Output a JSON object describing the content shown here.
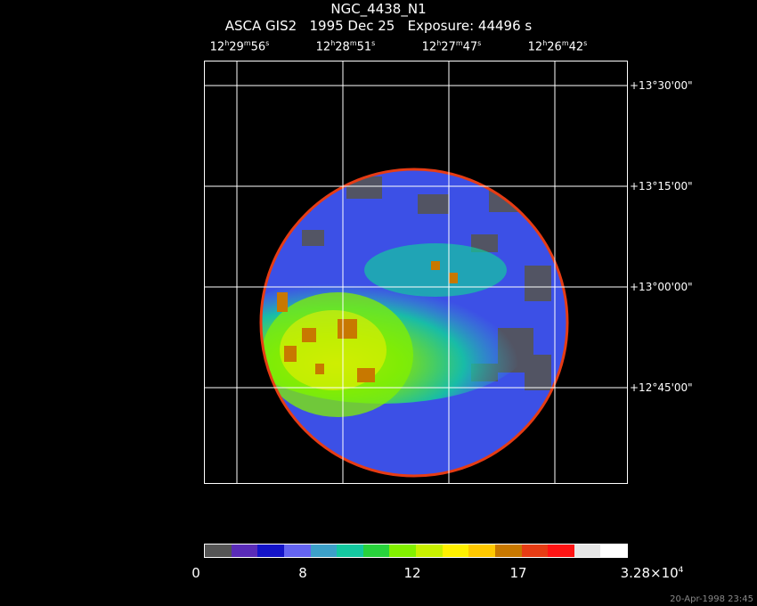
{
  "title": {
    "object": "NGC_4438_N1",
    "instrument": "ASCA GIS2",
    "date": "1995 Dec 25",
    "exposure_label": "Exposure:",
    "exposure_value": "44496 s"
  },
  "ra_ticks": [
    {
      "h": "12",
      "m": "29",
      "s": "56"
    },
    {
      "h": "12",
      "m": "28",
      "s": "51"
    },
    {
      "h": "12",
      "m": "27",
      "s": "47"
    },
    {
      "h": "12",
      "m": "26",
      "s": "42"
    }
  ],
  "dec_ticks": [
    "+13°30'00\"",
    "+13°15'00\"",
    "+13°00'00\"",
    "+12°45'00\""
  ],
  "colorbar": {
    "colors": [
      "#555555",
      "#5a2cb8",
      "#1414c8",
      "#6464f0",
      "#3ca0c8",
      "#14c8a0",
      "#28d23c",
      "#82f000",
      "#c8f000",
      "#fff000",
      "#ffc800",
      "#c87800",
      "#e63c14",
      "#ff1414",
      "#e6e6e6",
      "#ffffff"
    ],
    "labels": [
      "0",
      "8",
      "12",
      "17"
    ],
    "max_label_mantissa": "3.28×10",
    "max_label_exp": "4"
  },
  "timestamp": "20-Apr-1998 23:45"
}
